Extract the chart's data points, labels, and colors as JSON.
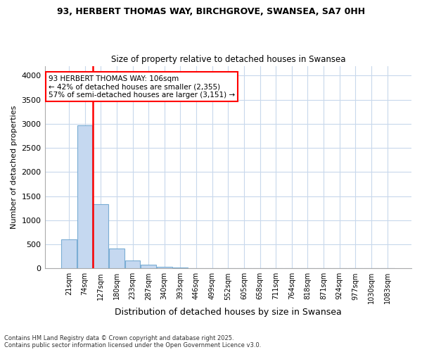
{
  "title_line1": "93, HERBERT THOMAS WAY, BIRCHGROVE, SWANSEA, SA7 0HH",
  "title_line2": "Size of property relative to detached houses in Swansea",
  "xlabel": "Distribution of detached houses by size in Swansea",
  "ylabel": "Number of detached properties",
  "bin_labels": [
    "21sqm",
    "74sqm",
    "127sqm",
    "180sqm",
    "233sqm",
    "287sqm",
    "340sqm",
    "393sqm",
    "446sqm",
    "499sqm",
    "552sqm",
    "605sqm",
    "658sqm",
    "711sqm",
    "764sqm",
    "818sqm",
    "871sqm",
    "924sqm",
    "977sqm",
    "1030sqm",
    "1083sqm"
  ],
  "bar_values": [
    600,
    2970,
    1330,
    420,
    165,
    85,
    40,
    20,
    5,
    0,
    0,
    0,
    0,
    0,
    0,
    0,
    0,
    0,
    0,
    0,
    0
  ],
  "bar_color": "#c5d8f0",
  "bar_edge_color": "#7aadd4",
  "background_color": "#ffffff",
  "grid_color": "#c8d8ec",
  "vline_color": "red",
  "vline_x_index": 1.5,
  "annotation_text": "93 HERBERT THOMAS WAY: 106sqm\n← 42% of detached houses are smaller (2,355)\n57% of semi-detached houses are larger (3,151) →",
  "annotation_box_color": "white",
  "annotation_box_edge": "red",
  "ylim": [
    0,
    4200
  ],
  "yticks": [
    0,
    500,
    1000,
    1500,
    2000,
    2500,
    3000,
    3500,
    4000
  ],
  "footnote": "Contains HM Land Registry data © Crown copyright and database right 2025.\nContains public sector information licensed under the Open Government Licence v3.0."
}
